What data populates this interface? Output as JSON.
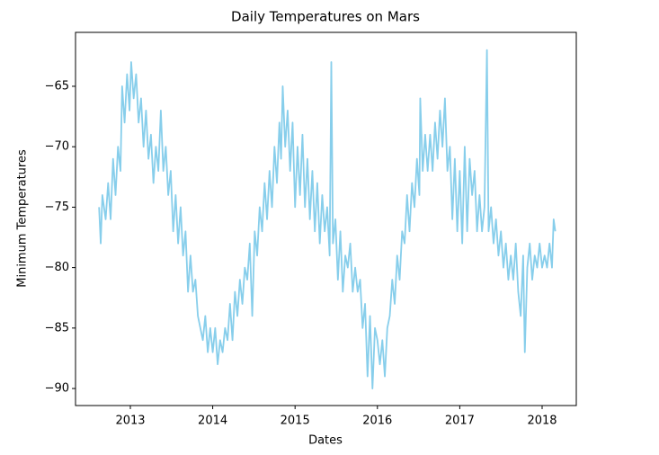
{
  "chart_data": {
    "type": "line",
    "title": "Daily Temperatures on Mars",
    "x_label": "Dates",
    "y_label": "Minimum Temperatures",
    "xlim": [
      2012.334,
      2018.415
    ],
    "ylim": [
      -91.41,
      -60.54
    ],
    "xticks": [
      2013,
      2014,
      2015,
      2016,
      2017,
      2018
    ],
    "yticks": [
      {
        "value": -90,
        "label": "−90"
      },
      {
        "value": -85,
        "label": "−85"
      },
      {
        "value": -80,
        "label": "−80"
      },
      {
        "value": -75,
        "label": "−75"
      },
      {
        "value": -70,
        "label": "−70"
      },
      {
        "value": -65,
        "label": "−65"
      }
    ],
    "grid": false,
    "x": [
      2012.62,
      2012.64,
      2012.66,
      2012.7,
      2012.73,
      2012.76,
      2012.79,
      2012.82,
      2012.85,
      2012.88,
      2012.9,
      2012.93,
      2012.96,
      2012.99,
      2013.01,
      2013.04,
      2013.07,
      2013.1,
      2013.13,
      2013.16,
      2013.19,
      2013.22,
      2013.25,
      2013.28,
      2013.31,
      2013.34,
      2013.37,
      2013.4,
      2013.43,
      2013.46,
      2013.49,
      2013.52,
      2013.55,
      2013.58,
      2013.61,
      2013.64,
      2013.67,
      2013.7,
      2013.73,
      2013.76,
      2013.79,
      2013.82,
      2013.85,
      2013.88,
      2013.91,
      2013.94,
      2013.97,
      2014.0,
      2014.03,
      2014.06,
      2014.09,
      2014.12,
      2014.15,
      2014.18,
      2014.21,
      2014.24,
      2014.27,
      2014.3,
      2014.33,
      2014.36,
      2014.39,
      2014.42,
      2014.45,
      2014.48,
      2014.51,
      2014.54,
      2014.57,
      2014.6,
      2014.63,
      2014.66,
      2014.69,
      2014.72,
      2014.75,
      2014.78,
      2014.81,
      2014.83,
      2014.85,
      2014.88,
      2014.91,
      2014.94,
      2014.97,
      2015.0,
      2015.03,
      2015.06,
      2015.09,
      2015.12,
      2015.15,
      2015.18,
      2015.21,
      2015.24,
      2015.27,
      2015.3,
      2015.33,
      2015.36,
      2015.39,
      2015.42,
      2015.44,
      2015.46,
      2015.49,
      2015.52,
      2015.55,
      2015.58,
      2015.61,
      2015.64,
      2015.67,
      2015.7,
      2015.73,
      2015.76,
      2015.79,
      2015.82,
      2015.85,
      2015.88,
      2015.91,
      2015.94,
      2015.97,
      2016.0,
      2016.03,
      2016.06,
      2016.09,
      2016.12,
      2016.15,
      2016.18,
      2016.21,
      2016.24,
      2016.27,
      2016.3,
      2016.33,
      2016.36,
      2016.39,
      2016.42,
      2016.45,
      2016.48,
      2016.51,
      2016.52,
      2016.55,
      2016.58,
      2016.61,
      2016.64,
      2016.67,
      2016.7,
      2016.73,
      2016.76,
      2016.79,
      2016.82,
      2016.85,
      2016.88,
      2016.91,
      2016.94,
      2016.97,
      2017.0,
      2017.03,
      2017.06,
      2017.09,
      2017.12,
      2017.15,
      2017.18,
      2017.21,
      2017.24,
      2017.27,
      2017.3,
      2017.33,
      2017.35,
      2017.38,
      2017.41,
      2017.44,
      2017.47,
      2017.5,
      2017.53,
      2017.56,
      2017.59,
      2017.62,
      2017.65,
      2017.68,
      2017.71,
      2017.74,
      2017.77,
      2017.79,
      2017.82,
      2017.85,
      2017.88,
      2017.91,
      2017.94,
      2017.97,
      2018.0,
      2018.03,
      2018.06,
      2018.09,
      2018.12,
      2018.14,
      2018.16
    ],
    "series": [
      {
        "name": "Minimum Temperatures",
        "color": "#87ceeb",
        "values": [
          -75,
          -78,
          -74,
          -76,
          -73,
          -76,
          -71,
          -74,
          -70,
          -72,
          -65,
          -68,
          -64,
          -67,
          -63,
          -66,
          -64,
          -68,
          -66,
          -70,
          -67,
          -71,
          -69,
          -73,
          -70,
          -72,
          -67,
          -72,
          -70,
          -74,
          -72,
          -77,
          -74,
          -78,
          -75,
          -79,
          -77,
          -82,
          -79,
          -82,
          -81,
          -84,
          -85,
          -86,
          -84,
          -87,
          -85,
          -87,
          -85,
          -88,
          -86,
          -87,
          -85,
          -86,
          -83,
          -86,
          -82,
          -84,
          -81,
          -83,
          -80,
          -81,
          -78,
          -84,
          -77,
          -79,
          -75,
          -77,
          -73,
          -76,
          -72,
          -75,
          -70,
          -73,
          -68,
          -71,
          -65,
          -70,
          -67,
          -72,
          -68,
          -75,
          -70,
          -74,
          -69,
          -75,
          -71,
          -76,
          -72,
          -77,
          -73,
          -78,
          -74,
          -77,
          -75,
          -79,
          -63,
          -78,
          -76,
          -81,
          -77,
          -82,
          -79,
          -80,
          -78,
          -82,
          -80,
          -82,
          -81,
          -85,
          -83,
          -89,
          -84,
          -90,
          -85,
          -86,
          -88,
          -86,
          -89,
          -85,
          -84,
          -81,
          -83,
          -79,
          -81,
          -77,
          -78,
          -74,
          -77,
          -73,
          -75,
          -71,
          -74,
          -66,
          -72,
          -69,
          -72,
          -69,
          -72,
          -68,
          -71,
          -67,
          -70,
          -66,
          -72,
          -70,
          -76,
          -71,
          -77,
          -72,
          -78,
          -70,
          -77,
          -71,
          -74,
          -72,
          -77,
          -74,
          -77,
          -75,
          -62,
          -77,
          -75,
          -78,
          -76,
          -79,
          -77,
          -80,
          -78,
          -81,
          -79,
          -81,
          -78,
          -82,
          -84,
          -79,
          -87,
          -80,
          -78,
          -81,
          -79,
          -80,
          -78,
          -80,
          -79,
          -80,
          -78,
          -80,
          -76,
          -77
        ]
      }
    ]
  }
}
